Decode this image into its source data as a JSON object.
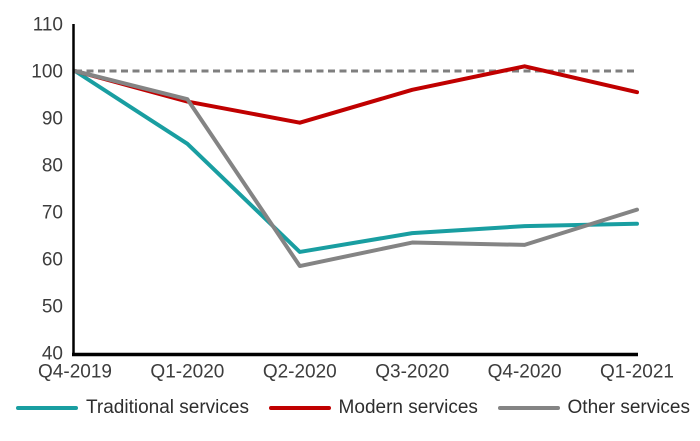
{
  "chart_data": {
    "type": "line",
    "title": "",
    "xlabel": "",
    "ylabel": "",
    "categories": [
      "Q4-2019",
      "Q1-2020",
      "Q2-2020",
      "Q3-2020",
      "Q4-2020",
      "Q1-2021"
    ],
    "series": [
      {
        "name": "Traditional services",
        "color": "#199EA1",
        "values": [
          100,
          84.5,
          61.5,
          65.5,
          67,
          67.5
        ]
      },
      {
        "name": "Modern services",
        "color": "#C00000",
        "values": [
          100,
          93.5,
          89,
          96,
          101,
          95.5
        ]
      },
      {
        "name": "Other services",
        "color": "#848484",
        "values": [
          100,
          94,
          58.5,
          63.5,
          63,
          70.5
        ]
      }
    ],
    "reference_line": {
      "value": 100,
      "style": "dashed",
      "color": "#7F7F7F"
    },
    "ylim": [
      40,
      110
    ],
    "yticks": [
      40,
      50,
      60,
      70,
      80,
      90,
      100,
      110
    ],
    "grid": false,
    "legend_position": "bottom"
  },
  "colors": {
    "axis": "#000000",
    "tick_text": "#3d3d3d",
    "background": "#ffffff"
  }
}
